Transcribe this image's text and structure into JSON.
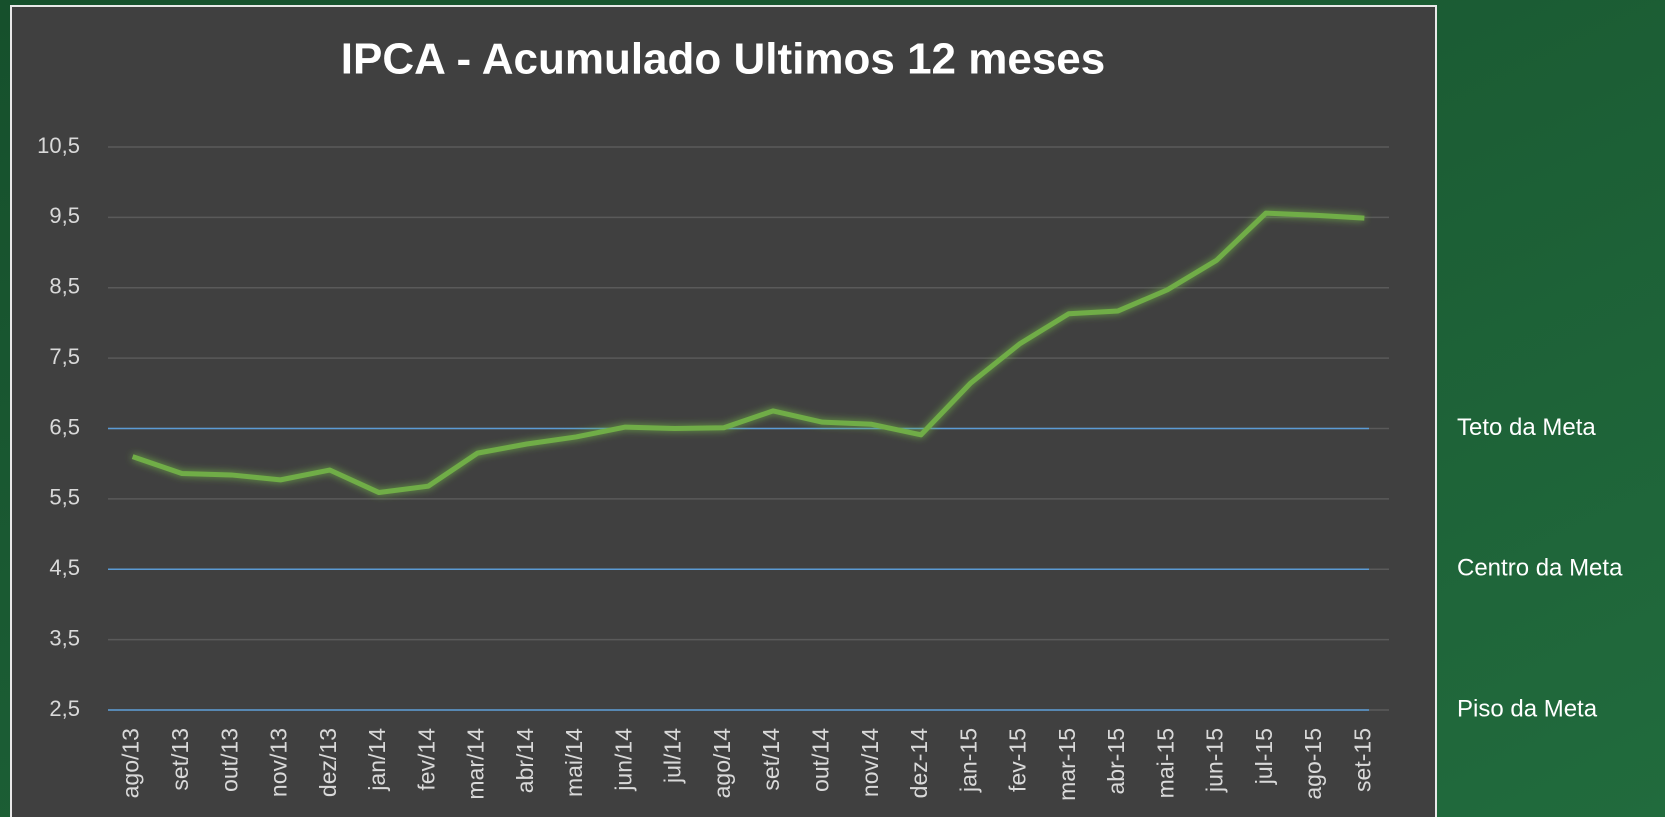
{
  "chart_data": {
    "type": "line",
    "title": "IPCA - Acumulado Ultimos 12 meses",
    "categories": [
      "ago/13",
      "set/13",
      "out/13",
      "nov/13",
      "dez/13",
      "jan/14",
      "fev/14",
      "mar/14",
      "abr/14",
      "mai/14",
      "jun/14",
      "jul/14",
      "ago/14",
      "set/14",
      "out/14",
      "nov/14",
      "dez-14",
      "jan-15",
      "fev-15",
      "mar-15",
      "abr-15",
      "mai-15",
      "jun-15",
      "jul-15",
      "ago-15",
      "set-15"
    ],
    "series": [
      {
        "name": "IPCA",
        "color": "#70ad47",
        "values": [
          6.1,
          5.86,
          5.84,
          5.77,
          5.91,
          5.59,
          5.68,
          6.15,
          6.28,
          6.38,
          6.52,
          6.5,
          6.51,
          6.75,
          6.59,
          6.56,
          6.41,
          7.14,
          7.7,
          8.13,
          8.17,
          8.47,
          8.89,
          9.56,
          9.53,
          9.49
        ]
      }
    ],
    "reference_lines": [
      {
        "label": "Teto da Meta",
        "value": 6.5,
        "color": "#5b9bd5"
      },
      {
        "label": "Centro da Meta",
        "value": 4.5,
        "color": "#5b9bd5"
      },
      {
        "label": "Piso da Meta",
        "value": 2.5,
        "color": "#5b9bd5"
      }
    ],
    "ylim": [
      2.5,
      10.5
    ],
    "yticks": [
      {
        "value": 2.5,
        "label": "2,5"
      },
      {
        "value": 3.5,
        "label": "3,5"
      },
      {
        "value": 4.5,
        "label": "4,5"
      },
      {
        "value": 5.5,
        "label": "5,5"
      },
      {
        "value": 6.5,
        "label": "6,5"
      },
      {
        "value": 7.5,
        "label": "7,5"
      },
      {
        "value": 8.5,
        "label": "8,5"
      },
      {
        "value": 9.5,
        "label": "9,5"
      },
      {
        "value": 10.5,
        "label": "10,5"
      }
    ],
    "grid": true
  }
}
